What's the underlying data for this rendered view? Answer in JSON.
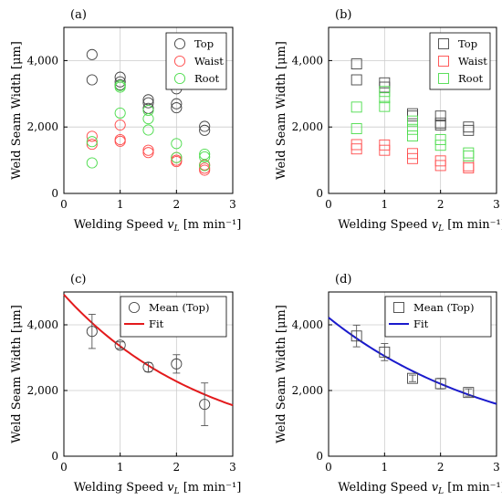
{
  "chart_data": [
    {
      "panel": "(a)",
      "type": "scatter",
      "marker": "circle",
      "xlabel": "Welding Speed v_L [m min⁻¹]",
      "ylabel": "Weld Seam Width [μm]",
      "xlim": [
        0,
        3
      ],
      "ylim": [
        0,
        5000
      ],
      "x_ticks": [
        "0",
        "1",
        "2",
        "3"
      ],
      "y_ticks": [
        "0",
        "2,000",
        "4,000"
      ],
      "grid": true,
      "legend_position": "top-right",
      "series": [
        {
          "name": "Top",
          "color": "#444444",
          "x": [
            0.5,
            0.5,
            1,
            1,
            1,
            1.5,
            1.5,
            1.5,
            2,
            2,
            2,
            2.5,
            2.5
          ],
          "y": [
            4180,
            3420,
            3500,
            3360,
            3270,
            2820,
            2730,
            2560,
            3150,
            2700,
            2580,
            2020,
            1900
          ]
        },
        {
          "name": "Waist",
          "color": "#ff4a4a",
          "x": [
            0.5,
            0.5,
            1,
            1,
            1,
            1.5,
            1.5,
            2,
            2,
            2,
            2.5,
            2.5,
            2.5
          ],
          "y": [
            1720,
            1480,
            2060,
            1620,
            1570,
            1300,
            1230,
            1080,
            1000,
            960,
            860,
            760,
            700
          ]
        },
        {
          "name": "Root",
          "color": "#4cdc4c",
          "x": [
            0.5,
            0.5,
            1,
            1,
            1,
            1.5,
            1.5,
            1.5,
            2,
            2,
            2.5,
            2.5,
            2.5
          ],
          "y": [
            1560,
            920,
            3250,
            3200,
            2420,
            2500,
            2250,
            1910,
            1500,
            1080,
            1180,
            1100,
            840
          ]
        }
      ]
    },
    {
      "panel": "(b)",
      "type": "scatter",
      "marker": "square",
      "xlabel": "Welding Speed v_L [m min⁻¹]",
      "ylabel": "Weld Seam Width [μm]",
      "xlim": [
        0,
        3
      ],
      "ylim": [
        0,
        5000
      ],
      "x_ticks": [
        "0",
        "1",
        "2",
        "3"
      ],
      "y_ticks": [
        "0",
        "2,000",
        "4,000"
      ],
      "grid": true,
      "legend_position": "top-right",
      "series": [
        {
          "name": "Top",
          "color": "#444444",
          "x": [
            0.5,
            0.5,
            1,
            1,
            1.5,
            1.5,
            2,
            2,
            2,
            2.5,
            2.5
          ],
          "y": [
            3900,
            3420,
            3330,
            3200,
            2400,
            2330,
            2330,
            2120,
            2060,
            2000,
            1900
          ]
        },
        {
          "name": "Waist",
          "color": "#ff4a4a",
          "x": [
            0.5,
            0.5,
            1,
            1,
            1.5,
            1.5,
            2,
            2,
            2.5,
            2.5
          ],
          "y": [
            1470,
            1340,
            1460,
            1300,
            1200,
            1050,
            980,
            840,
            830,
            770
          ]
        },
        {
          "name": "Root",
          "color": "#4cdc4c",
          "x": [
            0.5,
            0.5,
            1,
            1,
            1,
            1.5,
            1.5,
            1.5,
            2,
            2,
            2.5,
            2.5
          ],
          "y": [
            2600,
            1950,
            3070,
            2880,
            2620,
            2180,
            1930,
            1730,
            1620,
            1450,
            1220,
            1130
          ]
        }
      ]
    },
    {
      "panel": "(c)",
      "type": "scatter",
      "marker": "circle",
      "xlabel": "Welding Speed v_L [m min⁻¹]",
      "ylabel": "Weld Seam Width [μm]",
      "xlim": [
        0,
        3
      ],
      "ylim": [
        0,
        5000
      ],
      "x_ticks": [
        "0",
        "1",
        "2",
        "3"
      ],
      "y_ticks": [
        "0",
        "2,000",
        "4,000"
      ],
      "grid": true,
      "legend_position": "top-right",
      "series": [
        {
          "name": "Mean (Top)",
          "color": "#444444",
          "x": [
            0.5,
            1,
            1.5,
            2,
            2.5
          ],
          "y": [
            3800,
            3380,
            2710,
            2810,
            1580
          ],
          "error": [
            520,
            100,
            140,
            280,
            650
          ]
        },
        {
          "name": "Fit",
          "color": "#e31a1c",
          "kind": "line",
          "function": "y = 4920 · exp(-0.385 · x)"
        }
      ]
    },
    {
      "panel": "(d)",
      "type": "scatter",
      "marker": "square",
      "xlabel": "Welding Speed v_L [m min⁻¹]",
      "ylabel": "Weld Seam Width [μm]",
      "xlim": [
        0,
        3
      ],
      "ylim": [
        0,
        5000
      ],
      "x_ticks": [
        "0",
        "1",
        "2",
        "3"
      ],
      "y_ticks": [
        "0",
        "2,000",
        "4,000"
      ],
      "grid": true,
      "legend_position": "top-right",
      "series": [
        {
          "name": "Mean (Top)",
          "color": "#444444",
          "x": [
            0.5,
            1,
            1.5,
            2,
            2.5
          ],
          "y": [
            3660,
            3170,
            2370,
            2210,
            1940
          ],
          "error": [
            330,
            260,
            100,
            160,
            110
          ]
        },
        {
          "name": "Fit",
          "color": "#1a1acc",
          "kind": "line",
          "function": "y = 4220 · exp(-0.325 · x)"
        }
      ]
    }
  ]
}
